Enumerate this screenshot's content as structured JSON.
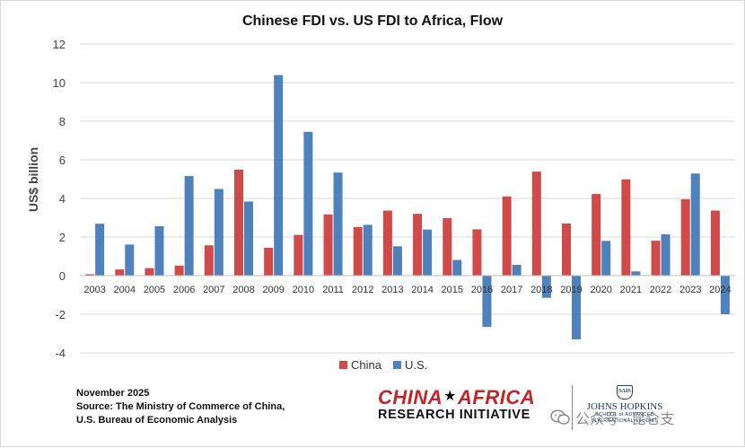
{
  "chart_data": {
    "type": "bar",
    "title": "Chinese FDI vs. US FDI to Africa, Flow",
    "xlabel": "",
    "ylabel": "US$ billion",
    "ylim": [
      -4,
      12
    ],
    "yticks": [
      -4,
      -2,
      0,
      2,
      4,
      6,
      8,
      10,
      12
    ],
    "grid": true,
    "legend_position": "bottom-center",
    "categories": [
      "2003",
      "2004",
      "2005",
      "2006",
      "2007",
      "2008",
      "2009",
      "2010",
      "2011",
      "2012",
      "2013",
      "2014",
      "2015",
      "2016",
      "2017",
      "2018",
      "2019",
      "2020",
      "2021",
      "2022",
      "2023",
      "2024"
    ],
    "series": [
      {
        "name": "China",
        "color": "#d04a4a",
        "values": [
          0.07,
          0.32,
          0.39,
          0.52,
          1.57,
          5.49,
          1.44,
          2.11,
          3.17,
          2.52,
          3.37,
          3.2,
          2.98,
          2.4,
          4.1,
          5.39,
          2.7,
          4.23,
          4.99,
          1.81,
          3.96,
          3.37
        ]
      },
      {
        "name": "U.S.",
        "color": "#4f81bd",
        "values": [
          2.69,
          1.61,
          2.56,
          5.16,
          4.49,
          3.84,
          10.39,
          7.45,
          5.34,
          2.63,
          1.52,
          2.39,
          0.81,
          -2.66,
          0.56,
          -1.15,
          -3.3,
          1.8,
          0.22,
          2.14,
          5.29,
          -2.0
        ]
      }
    ]
  },
  "footer": {
    "date": "November 2025",
    "source_line1": "Source: The Ministry of Commerce of China,",
    "source_line2": "U.S. Bureau of Economic Analysis"
  },
  "logos": {
    "cari_part1": "CHINA",
    "cari_star": "★",
    "cari_part2": "AFRICA",
    "cari_line2": "RESEARCH INITIATIVE",
    "sais_seal": "SAIS",
    "jhu_name": "JOHNS HOPKINS",
    "jhu_school": "SCHOOL of ADVANCED INTERNATIONAL STUDIES"
  },
  "watermark": {
    "text": "公众号 · 昆仑支",
    "icon": "wechat-icon"
  }
}
